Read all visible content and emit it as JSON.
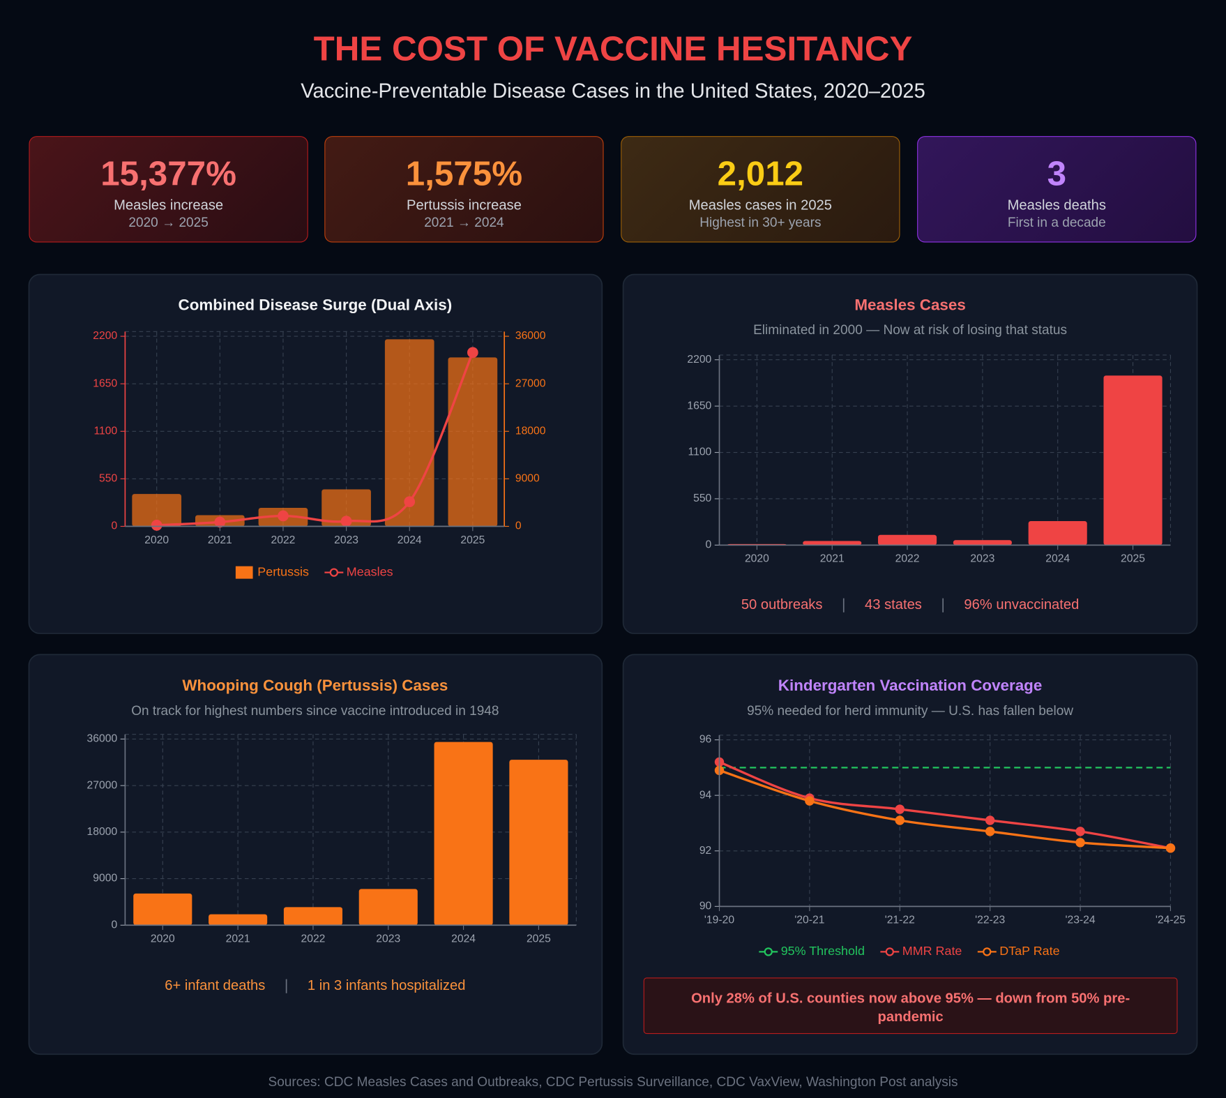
{
  "header": {
    "title": "THE COST OF VACCINE HESITANCY",
    "subtitle": "Vaccine-Preventable Disease Cases in the United States, 2020–2025"
  },
  "cards": [
    {
      "value": "15,377%",
      "label": "Measles increase",
      "note": "2020 → 2025"
    },
    {
      "value": "1,575%",
      "label": "Pertussis increase",
      "note": "2021 → 2024"
    },
    {
      "value": "2,012",
      "label": "Measles cases in 2025",
      "note": "Highest in 30+ years"
    },
    {
      "value": "3",
      "label": "Measles deaths",
      "note": "First in a decade"
    }
  ],
  "chart_data": [
    {
      "type": "bar",
      "title": "Combined Disease Surge (Dual Axis)",
      "categories": [
        "2020",
        "2021",
        "2022",
        "2023",
        "2024",
        "2025"
      ],
      "series": [
        {
          "name": "Pertussis",
          "color": "#f97316",
          "type": "bar",
          "axis": "y2",
          "values": [
            6124,
            2116,
            3500,
            7000,
            35435,
            32000
          ]
        },
        {
          "name": "Measles",
          "color": "#ef4444",
          "type": "line",
          "values": [
            13,
            49,
            121,
            59,
            285,
            2012
          ]
        }
      ],
      "ylim": [
        0,
        2200
      ],
      "yticks": [
        0,
        550,
        1100,
        1650,
        2200
      ],
      "y2lim": [
        0,
        36000
      ],
      "y2ticks": [
        0,
        9000,
        18000,
        27000,
        36000
      ],
      "grid": true,
      "legend": "bottom"
    },
    {
      "type": "bar",
      "title": "Measles Cases",
      "subtitle": "Eliminated in 2000 — Now at risk of losing that status",
      "categories": [
        "2020",
        "2021",
        "2022",
        "2023",
        "2024",
        "2025"
      ],
      "series": [
        {
          "name": "Measles",
          "color": "#ef4444",
          "values": [
            13,
            49,
            121,
            59,
            285,
            2012
          ]
        }
      ],
      "ylim": [
        0,
        2200
      ],
      "yticks": [
        0,
        550,
        1100,
        1650,
        2200
      ],
      "grid": true,
      "annotations": [
        "50 outbreaks",
        "43 states",
        "96% unvaccinated"
      ]
    },
    {
      "type": "bar",
      "title": "Whooping Cough (Pertussis) Cases",
      "subtitle": "On track for highest numbers since vaccine introduced in 1948",
      "categories": [
        "2020",
        "2021",
        "2022",
        "2023",
        "2024",
        "2025"
      ],
      "series": [
        {
          "name": "Pertussis",
          "color": "#f97316",
          "values": [
            6124,
            2116,
            3500,
            7000,
            35435,
            32000
          ]
        }
      ],
      "ylim": [
        0,
        36000
      ],
      "yticks": [
        0,
        9000,
        18000,
        27000,
        36000
      ],
      "grid": true,
      "annotations": [
        "6+ infant deaths",
        "1 in 3 infants hospitalized"
      ]
    },
    {
      "type": "line",
      "title": "Kindergarten Vaccination Coverage",
      "subtitle": "95% needed for herd immunity — U.S. has fallen below",
      "categories": [
        "'19-20",
        "'20-21",
        "'21-22",
        "'22-23",
        "'23-24",
        "'24-25"
      ],
      "series": [
        {
          "name": "95% Threshold",
          "color": "#22c55e",
          "dashed": true,
          "values": [
            95,
            95,
            95,
            95,
            95,
            95
          ]
        },
        {
          "name": "MMR Rate",
          "color": "#ef4444",
          "values": [
            95.2,
            93.9,
            93.5,
            93.1,
            92.7,
            92.1
          ]
        },
        {
          "name": "DTaP Rate",
          "color": "#f97316",
          "values": [
            94.9,
            93.8,
            93.1,
            92.7,
            92.3,
            92.1
          ]
        }
      ],
      "ylim": [
        90,
        96
      ],
      "yticks": [
        90,
        92,
        94,
        96
      ],
      "grid": true,
      "legend": "bottom",
      "note": "Only 28% of U.S. counties now above 95% — down from 50% pre-pandemic"
    }
  ],
  "footer": "Sources: CDC Measles Cases and Outbreaks, CDC Pertussis Surveillance, CDC VaxView, Washington Post analysis"
}
